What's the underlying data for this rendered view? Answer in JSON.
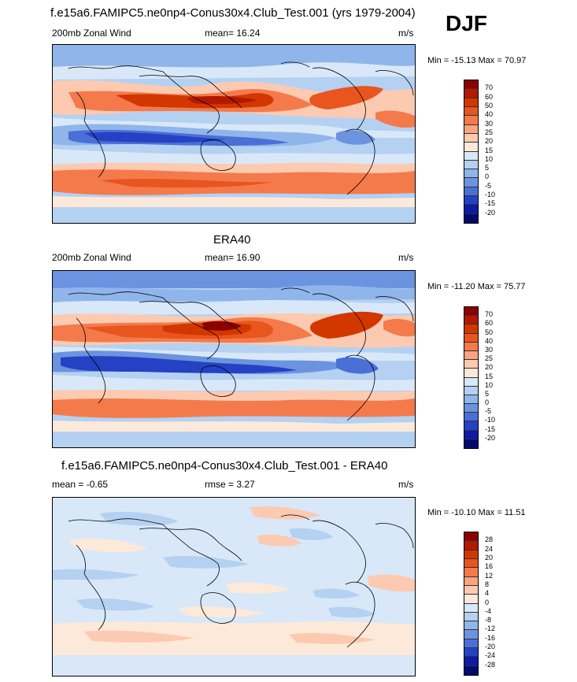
{
  "panels": [
    {
      "title": "f.e15a6.FAMIPC5.ne0np4-Conus30x4.Club_Test.001 (yrs 1979-2004)",
      "left_label": "200mb Zonal Wind",
      "mean_text": "mean=  16.24",
      "units": "m/s",
      "minmax": "Min = -15.13 Max =  70.97",
      "colorbar_labels": [
        "70",
        "60",
        "50",
        "40",
        "30",
        "25",
        "20",
        "15",
        "10",
        "5",
        "0",
        "-5",
        "-10",
        "-15",
        "-20"
      ],
      "colors": [
        "#8b0000",
        "#b31800",
        "#d23700",
        "#e8551e",
        "#f47a4c",
        "#f9a37f",
        "#fccab0",
        "#fde9da",
        "#d8e8f8",
        "#b4d1f2",
        "#8fb5eb",
        "#6b93df",
        "#4a6fd6",
        "#2541c4",
        "#0c1aa6",
        "#020a70"
      ]
    },
    {
      "title": "ERA40",
      "left_label": "200mb Zonal Wind",
      "mean_text": "mean=  16.90",
      "units": "m/s",
      "minmax": "Min = -11.20 Max =  75.77",
      "colorbar_labels": [
        "70",
        "60",
        "50",
        "40",
        "30",
        "25",
        "20",
        "15",
        "10",
        "5",
        "0",
        "-5",
        "-10",
        "-15",
        "-20"
      ],
      "colors": [
        "#8b0000",
        "#b31800",
        "#d23700",
        "#e8551e",
        "#f47a4c",
        "#f9a37f",
        "#fccab0",
        "#fde9da",
        "#d8e8f8",
        "#b4d1f2",
        "#8fb5eb",
        "#6b93df",
        "#4a6fd6",
        "#2541c4",
        "#0c1aa6",
        "#020a70"
      ]
    },
    {
      "title": "f.e15a6.FAMIPC5.ne0np4-Conus30x4.Club_Test.001 - ERA40",
      "left_label": "mean =  -0.65",
      "mean_text": "rmse =   3.27",
      "units": "m/s",
      "minmax": "Min = -10.10 Max =  11.51",
      "colorbar_labels": [
        "28",
        "24",
        "20",
        "16",
        "12",
        "8",
        "4",
        "0",
        "-4",
        "-8",
        "-12",
        "-16",
        "-20",
        "-24",
        "-28"
      ],
      "colors": [
        "#8b0000",
        "#b31800",
        "#d23700",
        "#e8551e",
        "#f47a4c",
        "#f9a37f",
        "#fccab0",
        "#fde9da",
        "#d8e8f8",
        "#b4d1f2",
        "#8fb5eb",
        "#6b93df",
        "#4a6fd6",
        "#2541c4",
        "#0c1aa6",
        "#020a70"
      ]
    }
  ],
  "season": "DJF",
  "chart_data": {
    "type": "heatmap",
    "description_fields": "global lat-lon maps of 200mb zonal wind, DJF",
    "panels": [
      "model",
      "ERA40",
      "model - ERA40"
    ]
  }
}
